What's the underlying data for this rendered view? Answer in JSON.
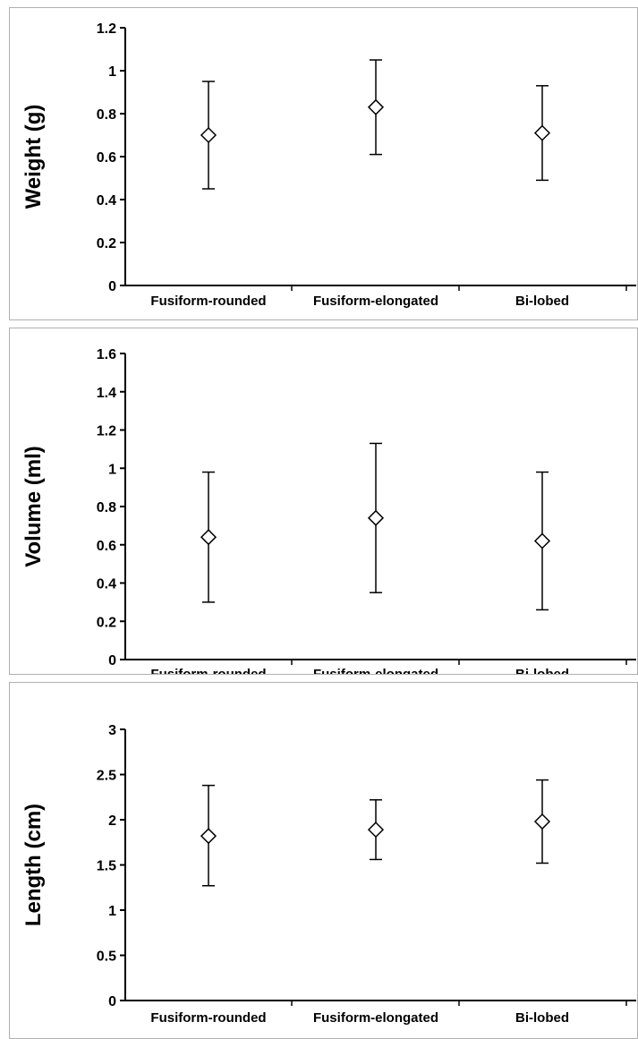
{
  "chart_data": [
    {
      "type": "scatter",
      "ylabel": "Weight (g)",
      "categories": [
        "Fusiform-rounded",
        "Fusiform-elongated",
        "Bi-lobed"
      ],
      "values": [
        0.7,
        0.83,
        0.71
      ],
      "error_low": [
        0.45,
        0.61,
        0.49
      ],
      "error_high": [
        0.95,
        1.05,
        0.93
      ],
      "ylim": [
        0,
        1.2
      ],
      "yticks": [
        "0",
        "0.2",
        "0.4",
        "0.6",
        "0.8",
        "1",
        "1.2"
      ],
      "marker": "diamond-open",
      "grid": false
    },
    {
      "type": "scatter",
      "ylabel": "Volume (ml)",
      "categories": [
        "Fusiform-rounded",
        "Fusiform-elongated",
        "Bi-lobed"
      ],
      "values": [
        0.64,
        0.74,
        0.62
      ],
      "error_low": [
        0.3,
        0.35,
        0.26
      ],
      "error_high": [
        0.98,
        1.13,
        0.98
      ],
      "ylim": [
        0,
        1.6
      ],
      "yticks": [
        "0",
        "0.2",
        "0.4",
        "0.6",
        "0.8",
        "1",
        "1.2",
        "1.4",
        "1.6"
      ],
      "marker": "diamond-open",
      "grid": false
    },
    {
      "type": "scatter",
      "ylabel": "Length (cm)",
      "categories": [
        "Fusiform-rounded",
        "Fusiform-elongated",
        "Bi-lobed"
      ],
      "values": [
        1.82,
        1.89,
        1.98
      ],
      "error_low": [
        1.27,
        1.56,
        1.52
      ],
      "error_high": [
        2.38,
        2.22,
        2.44
      ],
      "ylim": [
        0,
        3
      ],
      "yticks": [
        "0",
        "0.5",
        "1",
        "1.5",
        "2",
        "2.5",
        "3"
      ],
      "marker": "diamond-open",
      "grid": false
    }
  ]
}
